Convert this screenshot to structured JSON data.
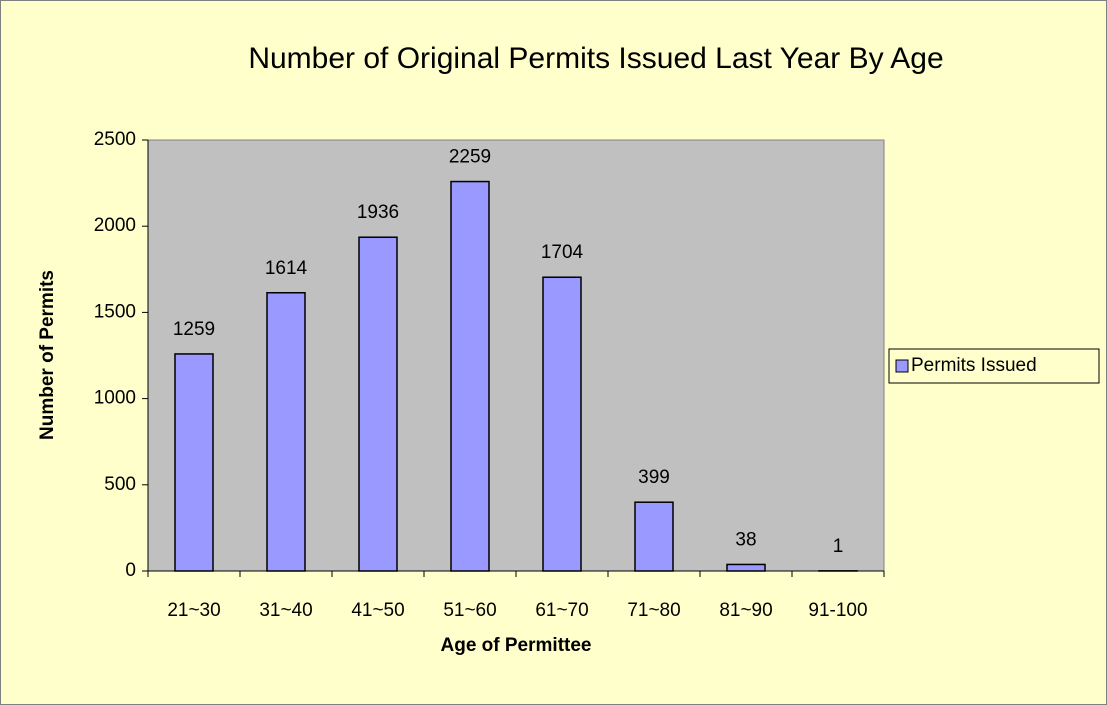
{
  "chart_data": {
    "type": "bar",
    "title": "Number of Original Permits Issued Last Year By Age",
    "xlabel": "Age of Permittee",
    "ylabel": "Number of Permits",
    "categories": [
      "21~30",
      "31~40",
      "41~50",
      "51~60",
      "61~70",
      "71~80",
      "81~90",
      "91-100"
    ],
    "series": [
      {
        "name": "Permits Issued",
        "color": "#9999ff",
        "values": [
          1259,
          1614,
          1936,
          2259,
          1704,
          399,
          38,
          1
        ]
      }
    ],
    "ylim": [
      0,
      2500
    ],
    "yticks": [
      0,
      500,
      1000,
      1500,
      2000,
      2500
    ],
    "grid": false,
    "legend": "right",
    "data_labels": true
  }
}
